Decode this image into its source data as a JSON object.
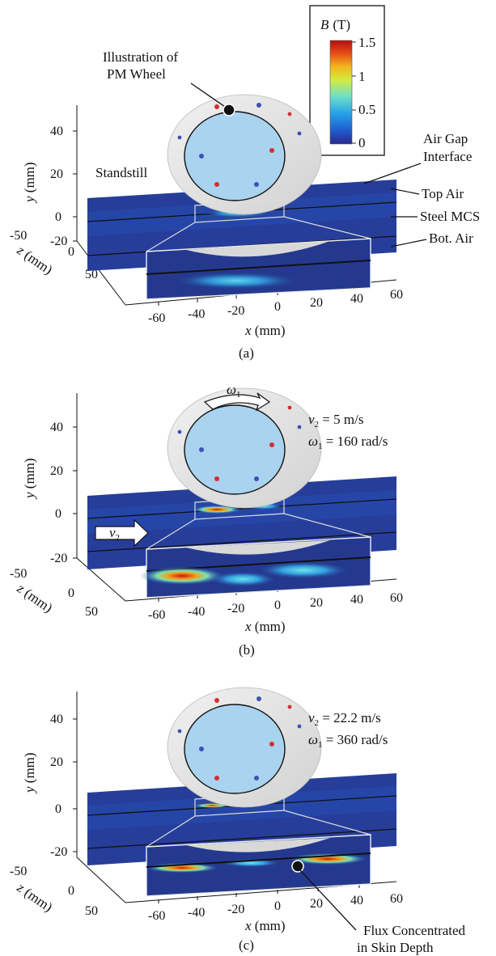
{
  "colorbar": {
    "symbol": "B",
    "unit": "(T)",
    "ticks": [
      "1.5",
      "1",
      "0.5",
      "0"
    ],
    "range": [
      0,
      1.5
    ],
    "colors": [
      "#2a2a8e",
      "#1f5fd0",
      "#27a4e8",
      "#6fe0c8",
      "#d4ec3c",
      "#f2b21e",
      "#e34a17",
      "#b30f12"
    ]
  },
  "axes": {
    "y_label": "y (mm)",
    "z_label": "z (mm)",
    "x_label": "x (mm)",
    "y_ticks": [
      "40",
      "20",
      "0",
      "-20"
    ],
    "z_ticks": [
      "-50",
      "0",
      "50"
    ],
    "x_ticks": [
      "-60",
      "-40",
      "-20",
      "0",
      "20",
      "40",
      "60"
    ]
  },
  "panel_a": {
    "caption": "(a)",
    "wheel_callout": [
      "Illustration of",
      "PM Wheel"
    ],
    "state": "Standstill",
    "labels": {
      "air_gap_line1": "Air Gap",
      "air_gap_line2": "Interface",
      "top_air": "Top Air",
      "steel": "Steel MCS",
      "bot_air": "Bot. Air"
    }
  },
  "panel_b": {
    "caption": "(b)",
    "omega_symbol": "ω",
    "omega_sub": "1",
    "v_symbol": "v",
    "v_sub": "2",
    "v_value": " = 5 m/s",
    "omega_value": " = 160 rad/s"
  },
  "panel_c": {
    "caption": "(c)",
    "v_symbol": "v",
    "v_sub": "2",
    "v_value": " = 22.2 m/s",
    "omega_symbol": "ω",
    "omega_sub": "1",
    "omega_value": " = 360 rad/s",
    "flux_callout": [
      "Flux Concentrated",
      "in Skin Depth"
    ]
  }
}
